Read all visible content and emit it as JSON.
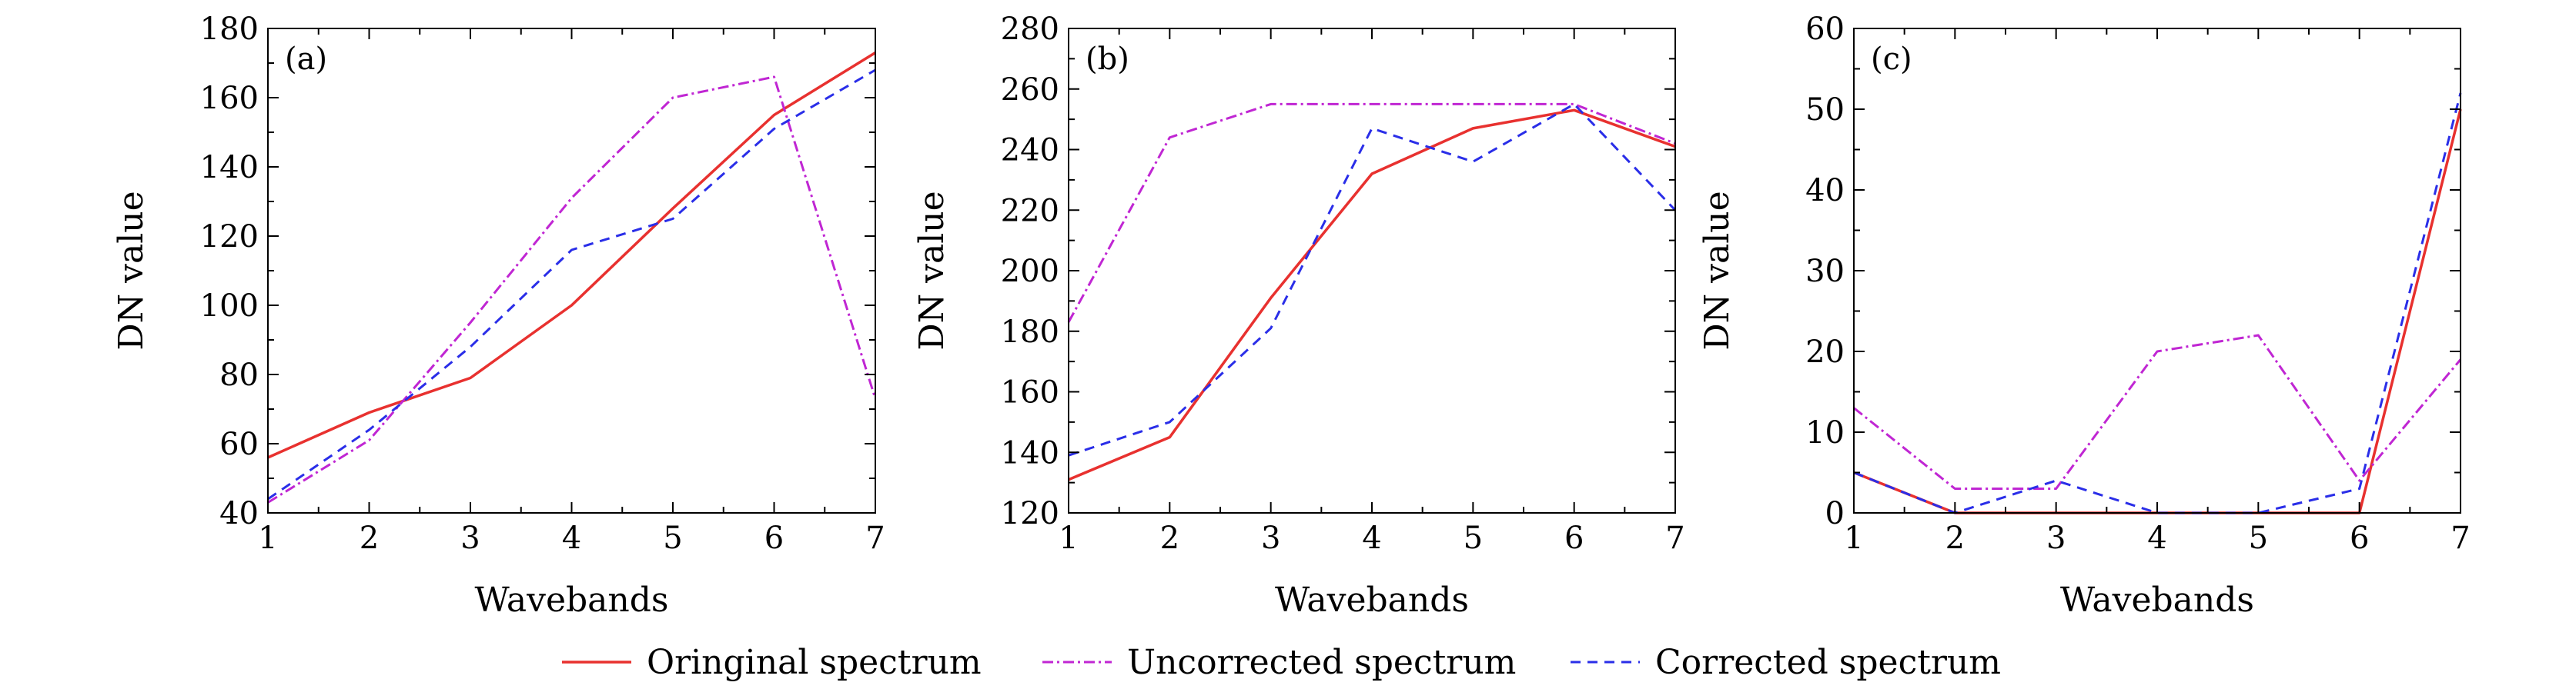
{
  "chart_data": [
    {
      "type": "line",
      "panel_label": "(a)",
      "xlabel": "Wavebands",
      "ylabel": "DN value",
      "x": [
        1,
        2,
        3,
        4,
        5,
        6,
        7
      ],
      "xlim": [
        1,
        7
      ],
      "ylim": [
        40,
        180
      ],
      "xticks": [
        "1",
        "2",
        "3",
        "4",
        "5",
        "6",
        "7"
      ],
      "yticks": [
        "40",
        "60",
        "80",
        "100",
        "120",
        "140",
        "160",
        "180"
      ],
      "series": [
        {
          "name": "Oringinal spectrum",
          "values": [
            56,
            69,
            79,
            100,
            128,
            155,
            173
          ]
        },
        {
          "name": "Uncorrected spectrum",
          "values": [
            43,
            61,
            95,
            131,
            160,
            166,
            73
          ]
        },
        {
          "name": "Corrected spectrum",
          "values": [
            44,
            64,
            88,
            116,
            125,
            151,
            168
          ]
        }
      ]
    },
    {
      "type": "line",
      "panel_label": "(b)",
      "xlabel": "Wavebands",
      "ylabel": "DN value",
      "x": [
        1,
        2,
        3,
        4,
        5,
        6,
        7
      ],
      "xlim": [
        1,
        7
      ],
      "ylim": [
        120,
        280
      ],
      "xticks": [
        "1",
        "2",
        "3",
        "4",
        "5",
        "6",
        "7"
      ],
      "yticks": [
        "120",
        "140",
        "160",
        "180",
        "200",
        "220",
        "240",
        "260",
        "280"
      ],
      "series": [
        {
          "name": "Oringinal spectrum",
          "values": [
            131,
            145,
            191,
            232,
            247,
            253,
            241
          ]
        },
        {
          "name": "Uncorrected spectrum",
          "values": [
            183,
            244,
            255,
            255,
            255,
            255,
            242
          ]
        },
        {
          "name": "Corrected spectrum",
          "values": [
            139,
            150,
            181,
            247,
            236,
            255,
            220
          ]
        }
      ]
    },
    {
      "type": "line",
      "panel_label": "(c)",
      "xlabel": "Wavebands",
      "ylabel": "DN value",
      "x": [
        1,
        2,
        3,
        4,
        5,
        6,
        7
      ],
      "xlim": [
        1,
        7
      ],
      "ylim": [
        0,
        60
      ],
      "xticks": [
        "1",
        "2",
        "3",
        "4",
        "5",
        "6",
        "7"
      ],
      "yticks": [
        "0",
        "10",
        "20",
        "30",
        "40",
        "50",
        "60"
      ],
      "series": [
        {
          "name": "Oringinal spectrum",
          "values": [
            5,
            0,
            0,
            0,
            0,
            0,
            50
          ]
        },
        {
          "name": "Uncorrected spectrum",
          "values": [
            13,
            3,
            3,
            20,
            22,
            4,
            19
          ]
        },
        {
          "name": "Corrected spectrum",
          "values": [
            5,
            0,
            4,
            0,
            0,
            3,
            52
          ]
        }
      ]
    }
  ],
  "legend": {
    "items": [
      {
        "label": "Oringinal spectrum",
        "color": "#e8312f",
        "style": "solid"
      },
      {
        "label": "Uncorrected spectrum",
        "color": "#c026d3",
        "style": "dashdot"
      },
      {
        "label": "Corrected spectrum",
        "color": "#2a2ee8",
        "style": "dashed"
      }
    ]
  },
  "colors": {
    "original": "#e8312f",
    "uncorrected": "#c026d3",
    "corrected": "#2a2ee8"
  }
}
